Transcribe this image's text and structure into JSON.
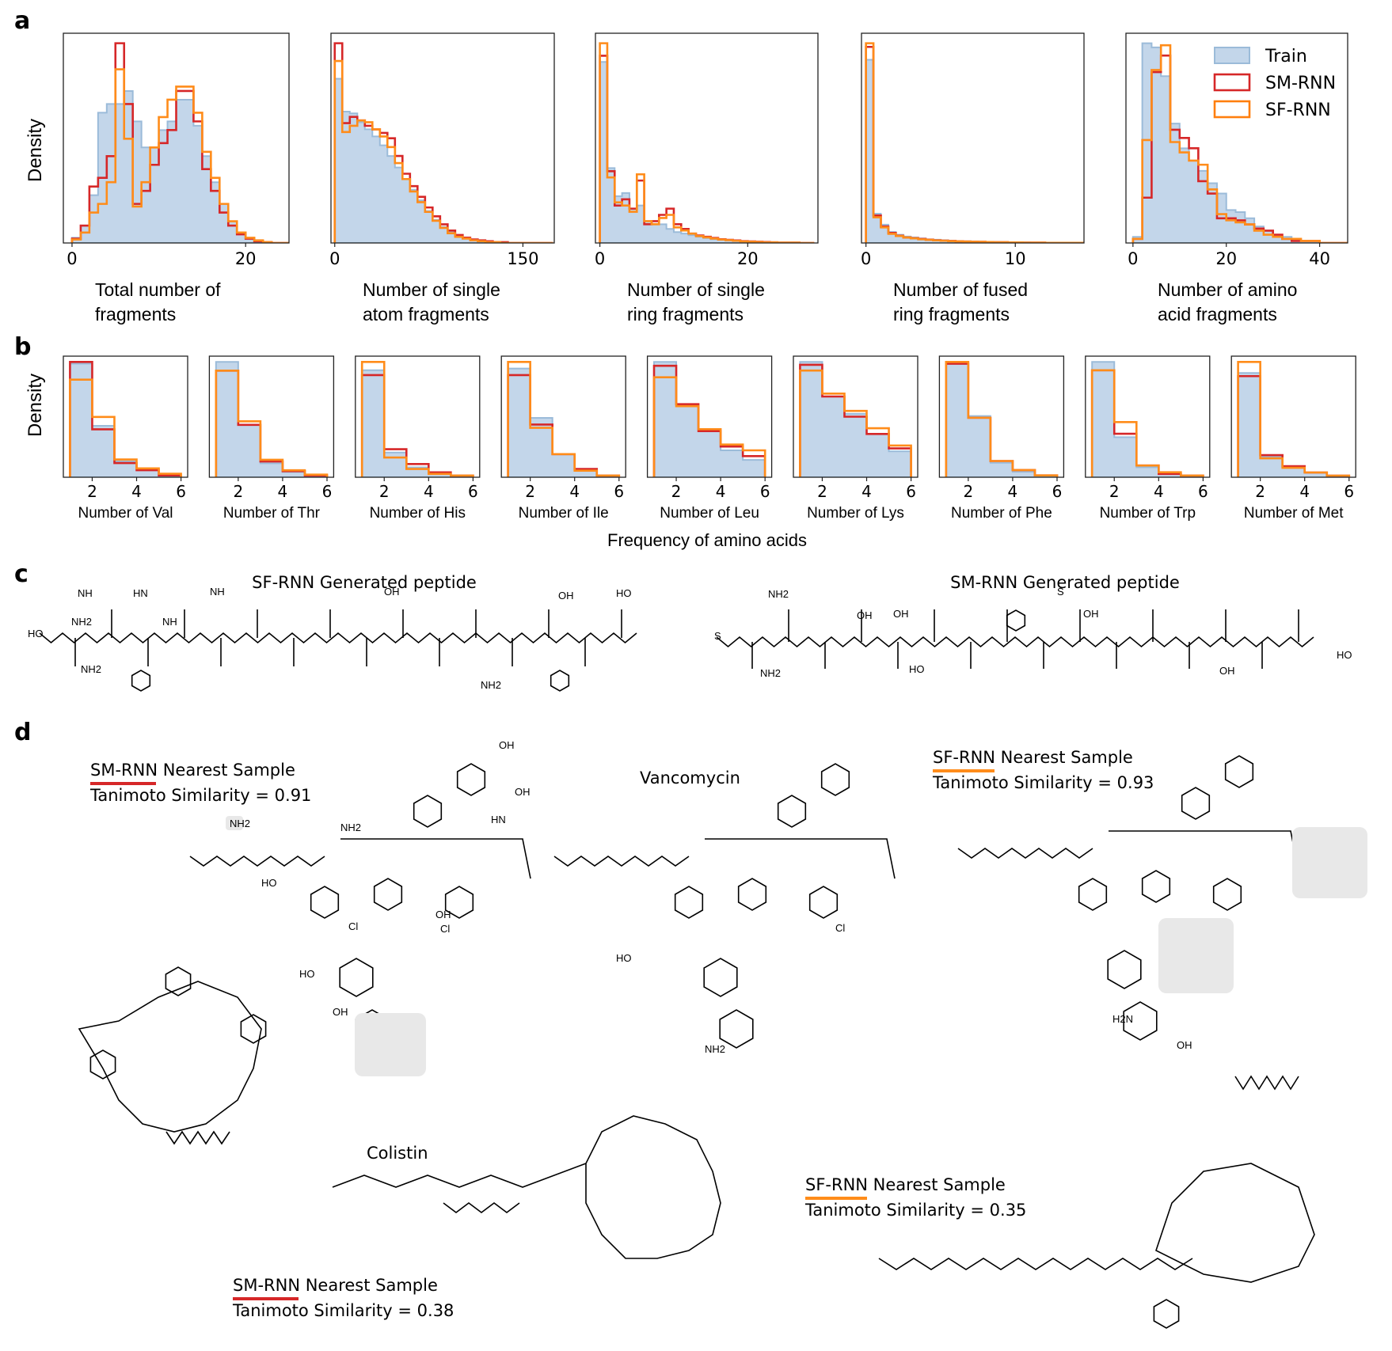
{
  "panels": {
    "a": {
      "letter": "a"
    },
    "b": {
      "letter": "b",
      "xlabel": "Frequency of amino acids"
    },
    "c": {
      "letter": "c"
    },
    "d": {
      "letter": "d"
    }
  },
  "shared_ylabel": "Density",
  "legend": {
    "placement": "top-right of last panel a",
    "entries": [
      {
        "name": "Train",
        "style": "filled",
        "color": "#a8c4e0"
      },
      {
        "name": "SM-RNN",
        "style": "step",
        "color": "#d62728"
      },
      {
        "name": "SF-RNN",
        "style": "step",
        "color": "#ff7f0e"
      }
    ]
  },
  "colors": {
    "train_fill": "#c3d6ea",
    "train_edge": "#9bbbd9",
    "sm_rnn": "#d62728",
    "sf_rnn": "#ff8c1a"
  },
  "chart_data": [
    {
      "type": "bar",
      "panel": "a",
      "xlabel": [
        "Total number of",
        "fragments"
      ],
      "ylabel": "Density",
      "xlim": [
        -1,
        25
      ],
      "xticks": [
        0,
        20
      ],
      "bin_start": 0,
      "bin_width": 1,
      "series": [
        {
          "name": "Train",
          "values": [
            0.006,
            0.02,
            0.055,
            0.15,
            0.16,
            0.16,
            0.175,
            0.14,
            0.11,
            0.11,
            0.13,
            0.14,
            0.165,
            0.165,
            0.135,
            0.1,
            0.07,
            0.045,
            0.025,
            0.012,
            0.006,
            0.003,
            0.001,
            0,
            0
          ]
        },
        {
          "name": "SM-RNN",
          "values": [
            0.005,
            0.02,
            0.065,
            0.075,
            0.1,
            0.23,
            0.16,
            0.045,
            0.06,
            0.09,
            0.115,
            0.13,
            0.175,
            0.175,
            0.14,
            0.085,
            0.06,
            0.035,
            0.02,
            0.01,
            0.005,
            0.002,
            0.001,
            0,
            0
          ]
        },
        {
          "name": "SF-RNN",
          "values": [
            0.004,
            0.012,
            0.035,
            0.045,
            0.07,
            0.2,
            0.12,
            0.042,
            0.07,
            0.11,
            0.145,
            0.165,
            0.18,
            0.18,
            0.15,
            0.105,
            0.075,
            0.045,
            0.025,
            0.012,
            0.006,
            0.003,
            0.001,
            0,
            0
          ]
        }
      ]
    },
    {
      "type": "bar",
      "panel": "a",
      "xlabel": [
        "Number of single",
        "atom fragments"
      ],
      "ylabel": "Density",
      "xlim": [
        -3,
        175
      ],
      "xticks": [
        0,
        150
      ],
      "bin_start": 0,
      "bin_width": 6,
      "series": [
        {
          "name": "Train",
          "values": [
            0.0185,
            0.0148,
            0.0146,
            0.0136,
            0.0128,
            0.012,
            0.011,
            0.0098,
            0.0085,
            0.0072,
            0.006,
            0.0048,
            0.0036,
            0.0026,
            0.0018,
            0.0012,
            0.0008,
            0.0005,
            0.0003,
            0.0002,
            0.0001,
            0.0001,
            0,
            0,
            0,
            0,
            0,
            0,
            0
          ]
        },
        {
          "name": "SM-RNN",
          "values": [
            0.0225,
            0.0135,
            0.0142,
            0.0138,
            0.0132,
            0.0128,
            0.0124,
            0.0118,
            0.0098,
            0.0078,
            0.0064,
            0.0052,
            0.004,
            0.003,
            0.0021,
            0.0014,
            0.0009,
            0.0006,
            0.0004,
            0.0003,
            0.0002,
            0.0001,
            0.0001,
            0,
            0,
            0,
            0,
            0,
            0
          ]
        },
        {
          "name": "SF-RNN",
          "values": [
            0.0205,
            0.0125,
            0.0132,
            0.0138,
            0.0136,
            0.0128,
            0.012,
            0.0108,
            0.009,
            0.0072,
            0.0058,
            0.0046,
            0.0035,
            0.0025,
            0.0017,
            0.0011,
            0.0007,
            0.0005,
            0.0003,
            0.0002,
            0.0001,
            0.0001,
            0,
            0,
            0,
            0,
            0,
            0,
            0
          ]
        }
      ]
    },
    {
      "type": "bar",
      "panel": "a",
      "xlabel": [
        "Number of single",
        "ring fragments"
      ],
      "ylabel": "Density",
      "xlim": [
        -0.6,
        29.5
      ],
      "xticks": [
        0,
        20
      ],
      "bin_start": 0,
      "bin_width": 1,
      "series": [
        {
          "name": "Train",
          "values": [
            0.58,
            0.24,
            0.15,
            0.16,
            0.11,
            0.12,
            0.07,
            0.06,
            0.06,
            0.045,
            0.035,
            0.03,
            0.025,
            0.02,
            0.016,
            0.012,
            0.01,
            0.008,
            0.006,
            0.005,
            0.004,
            0.003,
            0.002,
            0.002,
            0.001,
            0.001,
            0.001,
            0,
            0
          ]
        },
        {
          "name": "SM-RNN",
          "values": [
            0.6,
            0.23,
            0.12,
            0.14,
            0.11,
            0.2,
            0.06,
            0.07,
            0.09,
            0.11,
            0.06,
            0.045,
            0.03,
            0.024,
            0.02,
            0.016,
            0.012,
            0.01,
            0.008,
            0.006,
            0.005,
            0.004,
            0.003,
            0.002,
            0.001,
            0.001,
            0.001,
            0,
            0
          ]
        },
        {
          "name": "SF-RNN",
          "values": [
            0.64,
            0.21,
            0.13,
            0.12,
            0.1,
            0.22,
            0.07,
            0.06,
            0.08,
            0.09,
            0.05,
            0.04,
            0.03,
            0.022,
            0.018,
            0.014,
            0.011,
            0.009,
            0.007,
            0.005,
            0.004,
            0.003,
            0.002,
            0.002,
            0.001,
            0.001,
            0.001,
            0,
            0
          ]
        }
      ]
    },
    {
      "type": "bar",
      "panel": "a",
      "xlabel": [
        "Number of fused",
        "ring fragments"
      ],
      "ylabel": "Density",
      "xlim": [
        -0.3,
        14.6
      ],
      "xticks": [
        0,
        10
      ],
      "bin_start": 0,
      "bin_width": 0.5,
      "series": [
        {
          "name": "Train",
          "values": [
            1.0,
            0.16,
            0.1,
            0.06,
            0.045,
            0.035,
            0.03,
            0.025,
            0.02,
            0.018,
            0.015,
            0.012,
            0.01,
            0.009,
            0.008,
            0.007,
            0.006,
            0.005,
            0.004,
            0.004,
            0.003,
            0.003,
            0.002,
            0.002,
            0.002,
            0.001,
            0.001,
            0.001,
            0.001
          ]
        },
        {
          "name": "SM-RNN",
          "values": [
            1.07,
            0.15,
            0.09,
            0.055,
            0.04,
            0.03,
            0.026,
            0.022,
            0.018,
            0.015,
            0.013,
            0.011,
            0.009,
            0.008,
            0.007,
            0.006,
            0.005,
            0.004,
            0.004,
            0.003,
            0.003,
            0.002,
            0.002,
            0.002,
            0.001,
            0.001,
            0.001,
            0.001,
            0.001
          ]
        },
        {
          "name": "SF-RNN",
          "values": [
            1.09,
            0.14,
            0.085,
            0.05,
            0.038,
            0.03,
            0.025,
            0.02,
            0.017,
            0.014,
            0.012,
            0.01,
            0.009,
            0.008,
            0.007,
            0.006,
            0.005,
            0.004,
            0.004,
            0.003,
            0.003,
            0.002,
            0.002,
            0.002,
            0.001,
            0.001,
            0.001,
            0.001,
            0.001
          ]
        }
      ]
    },
    {
      "type": "bar",
      "panel": "a",
      "xlabel": [
        "Number of amino",
        "acid fragments"
      ],
      "ylabel": "Density",
      "xlim": [
        -1.5,
        46
      ],
      "xticks": [
        0,
        20,
        40
      ],
      "bin_start": 0,
      "bin_width": 2,
      "series": [
        {
          "name": "Train",
          "values": [
            0.003,
            0.097,
            0.095,
            0.081,
            0.058,
            0.046,
            0.04,
            0.035,
            0.029,
            0.024,
            0.016,
            0.015,
            0.012,
            0.008,
            0.006,
            0.004,
            0.003,
            0.002,
            0.001,
            0.001,
            0,
            0,
            0
          ]
        },
        {
          "name": "SM-RNN",
          "values": [
            0.002,
            0.022,
            0.083,
            0.091,
            0.055,
            0.051,
            0.046,
            0.03,
            0.024,
            0.012,
            0.012,
            0.011,
            0.009,
            0.007,
            0.006,
            0.004,
            0.002,
            0.001,
            0.001,
            0.001,
            0,
            0,
            0
          ]
        },
        {
          "name": "SF-RNN",
          "values": [
            0.002,
            0.05,
            0.084,
            0.096,
            0.049,
            0.044,
            0.04,
            0.038,
            0.026,
            0.014,
            0.011,
            0.01,
            0.009,
            0.006,
            0.004,
            0.003,
            0.002,
            0.002,
            0.001,
            0.001,
            0,
            0,
            0
          ]
        }
      ]
    },
    {
      "type": "bar",
      "panel": "b",
      "xlabel": [
        "Number of Val"
      ],
      "ylabel": "Density",
      "xlim": [
        0.7,
        6.3
      ],
      "xticks": [
        2,
        4,
        6
      ],
      "bin_start": 1,
      "bin_width": 1,
      "series": [
        {
          "name": "Train",
          "values": [
            0.64,
            0.29,
            0.09,
            0.04,
            0.01
          ]
        },
        {
          "name": "SM-RNN",
          "values": [
            0.65,
            0.27,
            0.08,
            0.04,
            0.01
          ]
        },
        {
          "name": "SF-RNN",
          "values": [
            0.55,
            0.34,
            0.1,
            0.05,
            0.02
          ]
        }
      ]
    },
    {
      "type": "bar",
      "panel": "b",
      "xlabel": [
        "Number of Thr"
      ],
      "ylabel": "Density",
      "xlim": [
        0.7,
        6.3
      ],
      "xticks": [
        2,
        4,
        6
      ],
      "bin_start": 1,
      "bin_width": 1,
      "series": [
        {
          "name": "Train",
          "values": [
            0.66,
            0.3,
            0.08,
            0.03,
            0.01
          ]
        },
        {
          "name": "SM-RNN",
          "values": [
            0.61,
            0.3,
            0.09,
            0.035,
            0.01
          ]
        },
        {
          "name": "SF-RNN",
          "values": [
            0.61,
            0.32,
            0.1,
            0.04,
            0.015
          ]
        }
      ]
    },
    {
      "type": "bar",
      "panel": "b",
      "xlabel": [
        "Number of His"
      ],
      "ylabel": "Density",
      "xlim": [
        0.7,
        6.3
      ],
      "xticks": [
        2,
        4,
        6
      ],
      "bin_start": 1,
      "bin_width": 1,
      "series": [
        {
          "name": "Train",
          "values": [
            0.65,
            0.15,
            0.06,
            0.03,
            0.01
          ]
        },
        {
          "name": "SM-RNN",
          "values": [
            0.62,
            0.17,
            0.08,
            0.03,
            0.01
          ]
        },
        {
          "name": "SF-RNN",
          "values": [
            0.7,
            0.12,
            0.05,
            0.02,
            0.01
          ]
        }
      ]
    },
    {
      "type": "bar",
      "panel": "b",
      "xlabel": [
        "Number of Ile"
      ],
      "ylabel": "Density",
      "xlim": [
        0.7,
        6.3
      ],
      "xticks": [
        2,
        4,
        6
      ],
      "bin_start": 1,
      "bin_width": 1,
      "series": [
        {
          "name": "Train",
          "values": [
            0.66,
            0.36,
            0.14,
            0.04,
            0.01
          ]
        },
        {
          "name": "SM-RNN",
          "values": [
            0.62,
            0.32,
            0.14,
            0.05,
            0.01
          ]
        },
        {
          "name": "SF-RNN",
          "values": [
            0.7,
            0.3,
            0.14,
            0.04,
            0.01
          ]
        }
      ]
    },
    {
      "type": "bar",
      "panel": "b",
      "xlabel": [
        "Number of Leu"
      ],
      "ylabel": "Density",
      "xlim": [
        0.7,
        6.3
      ],
      "xticks": [
        2,
        4,
        6
      ],
      "bin_start": 1,
      "bin_width": 1,
      "series": [
        {
          "name": "Train",
          "values": [
            0.6,
            0.38,
            0.24,
            0.14,
            0.09
          ]
        },
        {
          "name": "SM-RNN",
          "values": [
            0.58,
            0.38,
            0.24,
            0.16,
            0.11
          ]
        },
        {
          "name": "SF-RNN",
          "values": [
            0.52,
            0.37,
            0.25,
            0.17,
            0.14
          ]
        }
      ]
    },
    {
      "type": "bar",
      "panel": "b",
      "xlabel": [
        "Number of Lys"
      ],
      "ylabel": "Density",
      "xlim": [
        0.7,
        6.3
      ],
      "xticks": [
        2,
        4,
        6
      ],
      "bin_start": 1,
      "bin_width": 1,
      "series": [
        {
          "name": "Train",
          "values": [
            0.4,
            0.28,
            0.22,
            0.15,
            0.09
          ]
        },
        {
          "name": "SM-RNN",
          "values": [
            0.39,
            0.28,
            0.21,
            0.15,
            0.1
          ]
        },
        {
          "name": "SF-RNN",
          "values": [
            0.37,
            0.29,
            0.23,
            0.17,
            0.11
          ]
        }
      ]
    },
    {
      "type": "bar",
      "panel": "b",
      "xlabel": [
        "Number of Phe"
      ],
      "ylabel": "Density",
      "xlim": [
        0.7,
        6.3
      ],
      "xticks": [
        2,
        4,
        6
      ],
      "bin_start": 1,
      "bin_width": 1,
      "series": [
        {
          "name": "Train",
          "values": [
            0.64,
            0.34,
            0.08,
            0.03,
            0.01
          ]
        },
        {
          "name": "SM-RNN",
          "values": [
            0.63,
            0.33,
            0.09,
            0.04,
            0.01
          ]
        },
        {
          "name": "SF-RNN",
          "values": [
            0.64,
            0.33,
            0.09,
            0.04,
            0.01
          ]
        }
      ]
    },
    {
      "type": "bar",
      "panel": "b",
      "xlabel": [
        "Number of Trp"
      ],
      "ylabel": "Density",
      "xlim": [
        0.7,
        6.3
      ],
      "xticks": [
        2,
        4,
        6
      ],
      "bin_start": 1,
      "bin_width": 1,
      "series": [
        {
          "name": "Train",
          "values": [
            0.69,
            0.24,
            0.06,
            0.02,
            0.01
          ]
        },
        {
          "name": "SM-RNN",
          "values": [
            0.64,
            0.26,
            0.07,
            0.02,
            0.01
          ]
        },
        {
          "name": "SF-RNN",
          "values": [
            0.64,
            0.33,
            0.07,
            0.03,
            0.01
          ]
        }
      ]
    },
    {
      "type": "bar",
      "panel": "b",
      "xlabel": [
        "Number of Met"
      ],
      "ylabel": "Density",
      "xlim": [
        0.7,
        6.3
      ],
      "xticks": [
        2,
        4,
        6
      ],
      "bin_start": 1,
      "bin_width": 1,
      "series": [
        {
          "name": "Train",
          "values": [
            0.66,
            0.13,
            0.06,
            0.03,
            0.01
          ]
        },
        {
          "name": "SM-RNN",
          "values": [
            0.64,
            0.14,
            0.07,
            0.03,
            0.01
          ]
        },
        {
          "name": "SF-RNN",
          "values": [
            0.73,
            0.12,
            0.06,
            0.03,
            0.01
          ]
        }
      ]
    }
  ],
  "panel_c": {
    "left_title": "SF-RNN Generated peptide",
    "right_title": "SM-RNN Generated peptide",
    "left_groups": [
      "NH",
      "NH2",
      "HN",
      "NH",
      "NH",
      "NH2",
      "HO",
      "NH2",
      "OH",
      "HO",
      "OH"
    ],
    "right_groups": [
      "NH2",
      "S",
      "NH2",
      "OH",
      "OH",
      "HO",
      "S",
      "OH",
      "OH",
      "HO"
    ]
  },
  "panel_d": {
    "center_title": "Vancomycin",
    "sm_top": {
      "title": "SM-RNN Nearest Sample",
      "similarity": "Tanimoto Similarity = 0.91"
    },
    "sf_top": {
      "title": "SF-RNN Nearest Sample",
      "similarity": "Tanimoto Similarity = 0.93"
    },
    "colistin_title": "Colistin",
    "sm_bottom": {
      "title": "SM-RNN Nearest Sample",
      "similarity": "Tanimoto Similarity = 0.38"
    },
    "sf_bottom": {
      "title": "SF-RNN Nearest Sample",
      "similarity": "Tanimoto Similarity = 0.35"
    },
    "atom_labels": [
      "OH",
      "HO",
      "NH2",
      "Cl",
      "OH",
      "NH2",
      "HO",
      "OH",
      "HN",
      "OH",
      "Cl",
      "Cl",
      "HO",
      "NH2",
      "H2N",
      "OH"
    ]
  }
}
